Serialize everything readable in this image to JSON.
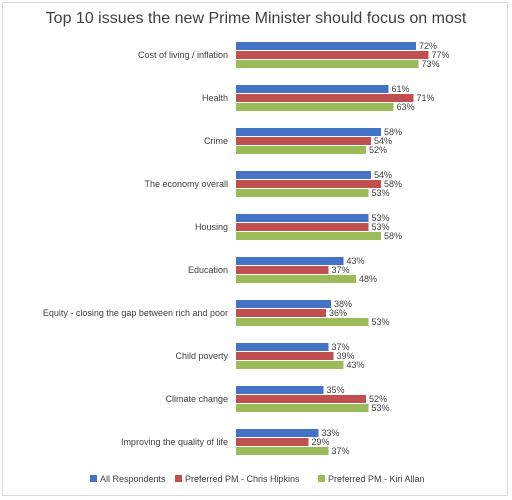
{
  "chart_data": {
    "type": "bar",
    "orientation": "horizontal",
    "title": "Top 10 issues the new Prime Minister should focus on most",
    "xlabel": "",
    "ylabel": "",
    "xlim": [
      0,
      80
    ],
    "grid": false,
    "legend_position": "bottom",
    "value_suffix": "%",
    "categories": [
      "Cost of living / inflation",
      "Health",
      "Crime",
      "The economy overall",
      "Housing",
      "Education",
      "Equity - closing the gap between rich and poor",
      "Child poverty",
      "Climate change",
      "Improving the quality of life"
    ],
    "series": [
      {
        "name": "All Respondents",
        "color": "#4472c4",
        "values": [
          72,
          61,
          58,
          54,
          53,
          43,
          38,
          37,
          35,
          33
        ]
      },
      {
        "name": "Preferred PM - Chris Hipkins",
        "color": "#c0504d",
        "values": [
          77,
          71,
          54,
          58,
          53,
          37,
          36,
          39,
          52,
          29
        ]
      },
      {
        "name": "Preferred PM - Kiri Allan",
        "color": "#9bbb59",
        "values": [
          73,
          63,
          52,
          53,
          58,
          48,
          53,
          43,
          53,
          37
        ]
      }
    ]
  }
}
